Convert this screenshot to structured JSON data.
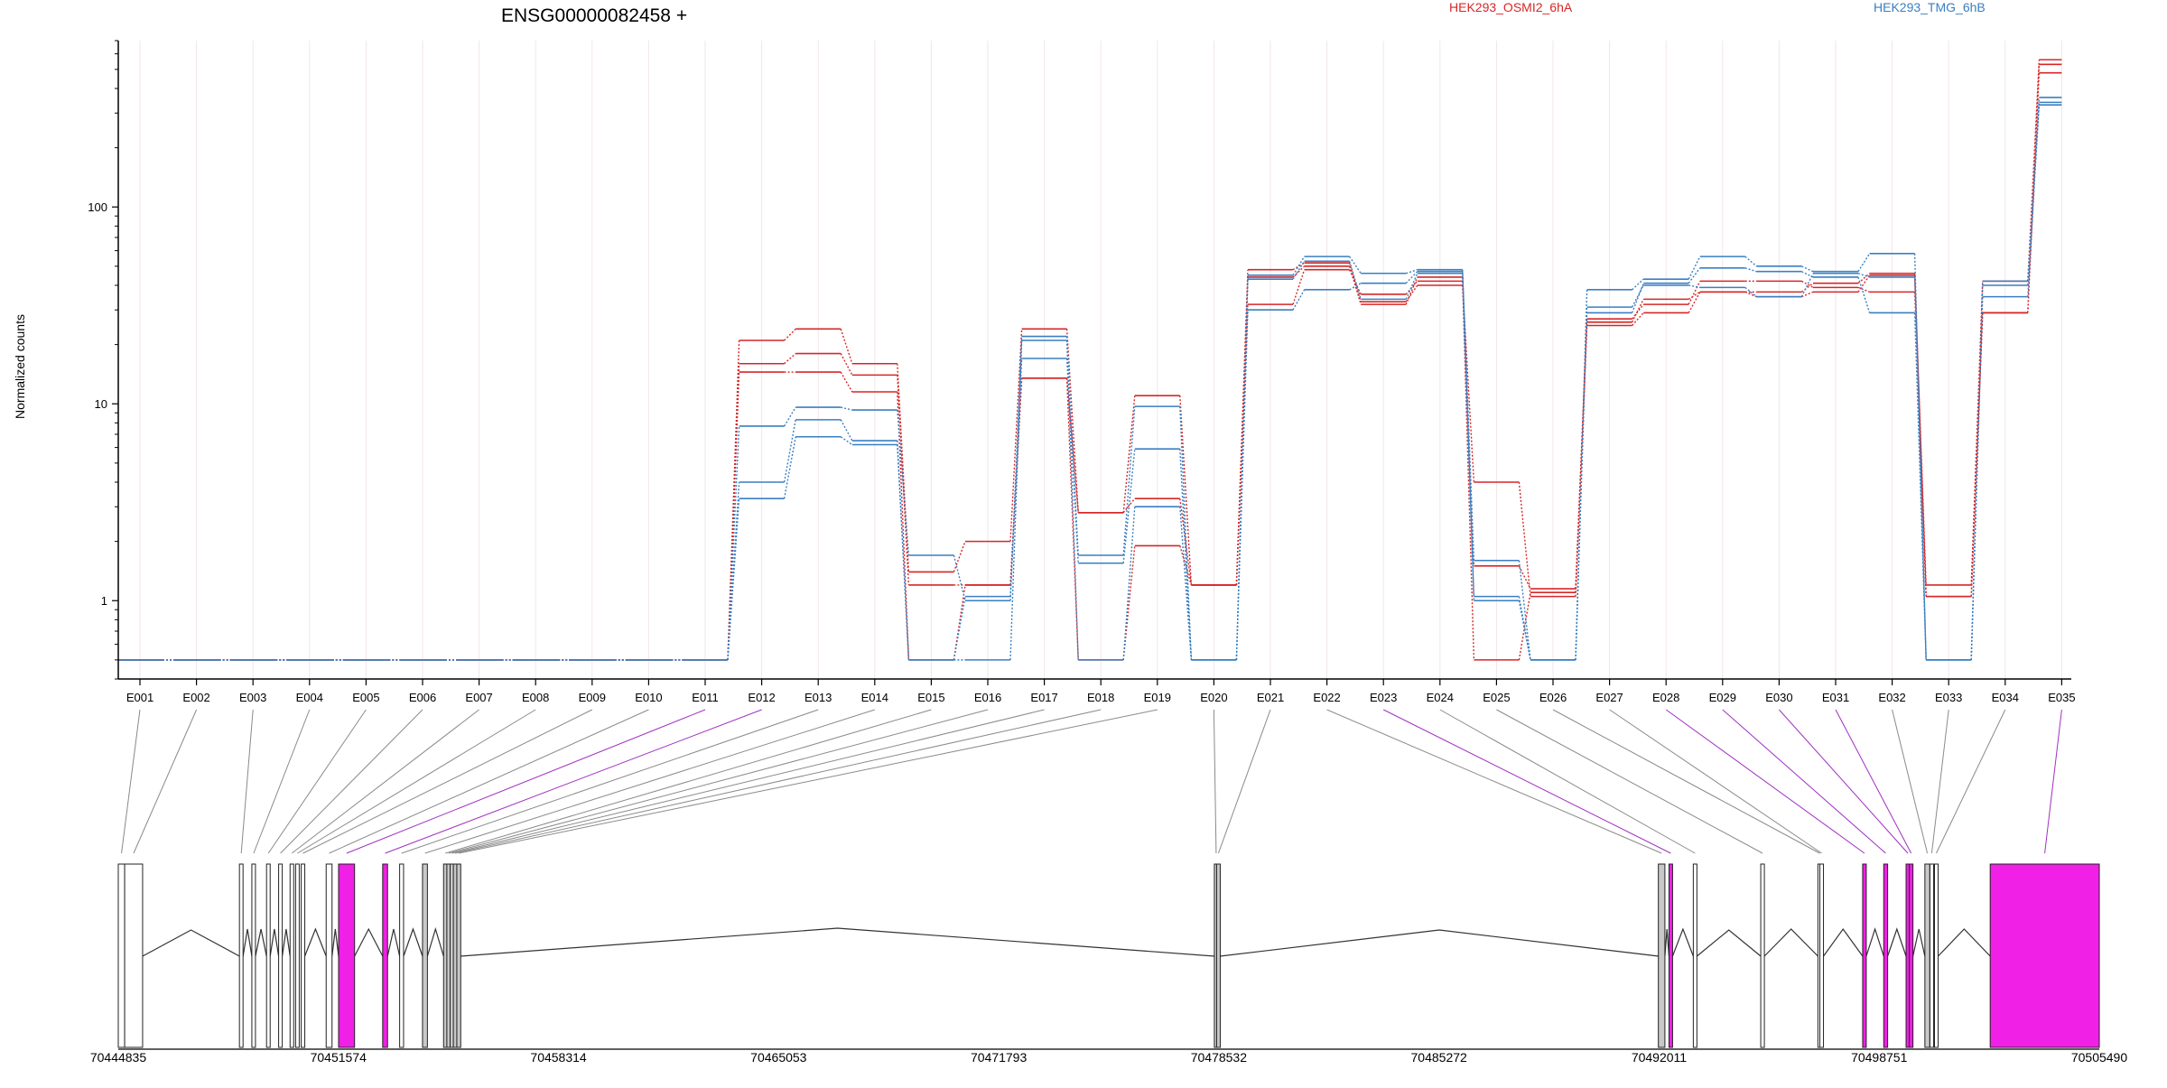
{
  "chart_data": {
    "type": "line",
    "title": "ENSG00000082458 +",
    "ylabel": "Normalized counts",
    "xlabel": "",
    "y_scale": "log",
    "ylim": [
      0.4,
      700
    ],
    "y_ticks": [
      1,
      10,
      100
    ],
    "y_tick_labels": [
      "1",
      "10",
      "100"
    ],
    "grid": true,
    "legend_position": "top",
    "legend": [
      {
        "name": "HEK293_OSMI2_6hA",
        "color": "#d62728"
      },
      {
        "name": "HEK293_TMG_6hB",
        "color": "#3a7fc1"
      }
    ],
    "categories": [
      "E001",
      "E002",
      "E003",
      "E004",
      "E005",
      "E006",
      "E007",
      "E008",
      "E009",
      "E010",
      "E011",
      "E012",
      "E013",
      "E014",
      "E015",
      "E016",
      "E017",
      "E018",
      "E019",
      "E020",
      "E021",
      "E022",
      "E023",
      "E024",
      "E025",
      "E026",
      "E027",
      "E028",
      "E029",
      "E030",
      "E031",
      "E032",
      "E033",
      "E034",
      "E035"
    ],
    "series": [
      {
        "group": "HEK293_OSMI2_6hA",
        "color": "#d62728",
        "values": [
          0.5,
          0.5,
          0.5,
          0.5,
          0.5,
          0.5,
          0.5,
          0.5,
          0.5,
          0.5,
          0.5,
          21,
          24,
          16,
          1.4,
          2,
          24,
          2.8,
          11,
          1.2,
          48,
          52,
          33,
          40,
          4,
          1.05,
          26,
          34,
          37,
          35,
          37,
          45,
          1.2,
          42,
          560
        ]
      },
      {
        "group": "HEK293_OSMI2_6hA",
        "color": "#d62728",
        "values": [
          0.5,
          0.5,
          0.5,
          0.5,
          0.5,
          0.5,
          0.5,
          0.5,
          0.5,
          0.5,
          0.5,
          16,
          18,
          14,
          1.2,
          1.2,
          13.5,
          2.8,
          3.3,
          1.2,
          44,
          50,
          32,
          44,
          1.5,
          1.15,
          27,
          32,
          42,
          42,
          39,
          37,
          1.05,
          29,
          530
        ]
      },
      {
        "group": "HEK293_OSMI2_6hA",
        "color": "#d62728",
        "values": [
          0.5,
          0.5,
          0.5,
          0.5,
          0.5,
          0.5,
          0.5,
          0.5,
          0.5,
          0.5,
          0.5,
          14.5,
          14.5,
          11.5,
          0.5,
          1.2,
          13.5,
          0.5,
          1.9,
          1.2,
          32,
          48,
          36,
          42,
          0.5,
          1.1,
          25,
          29,
          37,
          37,
          41,
          46,
          1.05,
          29,
          480
        ]
      },
      {
        "group": "HEK293_TMG_6hB",
        "color": "#3a7fc1",
        "values": [
          0.5,
          0.5,
          0.5,
          0.5,
          0.5,
          0.5,
          0.5,
          0.5,
          0.5,
          0.5,
          0.5,
          7.7,
          9.6,
          9.3,
          1.7,
          1,
          22,
          1.7,
          9.7,
          0.5,
          45,
          56,
          46,
          48,
          1.6,
          0.5,
          38,
          43,
          56,
          50,
          47,
          58,
          0.5,
          40,
          360
        ]
      },
      {
        "group": "HEK293_TMG_6hB",
        "color": "#3a7fc1",
        "values": [
          0.5,
          0.5,
          0.5,
          0.5,
          0.5,
          0.5,
          0.5,
          0.5,
          0.5,
          0.5,
          0.5,
          4,
          8.3,
          6.5,
          0.5,
          1.05,
          17,
          1.55,
          5.9,
          0.5,
          30,
          38,
          41,
          47,
          1.05,
          0.5,
          29,
          41,
          49,
          47,
          44,
          29,
          0.5,
          35,
          340
        ]
      },
      {
        "group": "HEK293_TMG_6hB",
        "color": "#3a7fc1",
        "values": [
          0.5,
          0.5,
          0.5,
          0.5,
          0.5,
          0.5,
          0.5,
          0.5,
          0.5,
          0.5,
          0.5,
          3.3,
          6.8,
          6.2,
          0.5,
          0.5,
          21,
          0.5,
          3,
          0.5,
          43,
          53,
          34,
          46,
          1,
          0.5,
          31,
          40,
          39,
          35,
          46,
          44,
          0.5,
          42,
          330
        ]
      }
    ],
    "gene_model": {
      "genomic_axis_labels": [
        "70444835",
        "70451574",
        "70458314",
        "70465053",
        "70471793",
        "70478532",
        "70485272",
        "70492011",
        "70498751",
        "70505490"
      ],
      "exon_bins": [
        {
          "id": "E001",
          "start": 70444835,
          "end": 70445030,
          "highlight": false
        },
        {
          "id": "E002",
          "start": 70445030,
          "end": 70445580,
          "highlight": false
        },
        {
          "id": "E003",
          "start": 70448550,
          "end": 70448650,
          "highlight": false
        },
        {
          "id": "E004",
          "start": 70448930,
          "end": 70449030,
          "highlight": false
        },
        {
          "id": "E005",
          "start": 70449380,
          "end": 70449480,
          "highlight": false
        },
        {
          "id": "E006",
          "start": 70449750,
          "end": 70449850,
          "highlight": false
        },
        {
          "id": "E007",
          "start": 70450100,
          "end": 70450200,
          "highlight": false
        },
        {
          "id": "E008",
          "start": 70450270,
          "end": 70450370,
          "highlight": false
        },
        {
          "id": "E009",
          "start": 70450440,
          "end": 70450540,
          "highlight": false
        },
        {
          "id": "E010",
          "start": 70451200,
          "end": 70451380,
          "highlight": false
        },
        {
          "id": "E011",
          "start": 70451580,
          "end": 70452070,
          "highlight": true
        },
        {
          "id": "E012",
          "start": 70452930,
          "end": 70453080,
          "highlight": true
        },
        {
          "id": "E013",
          "start": 70453450,
          "end": 70453570,
          "highlight": false
        },
        {
          "id": "E014",
          "start": 70454150,
          "end": 70454300,
          "highlight": false
        },
        {
          "id": "E015",
          "start": 70454800,
          "end": 70454900,
          "highlight": false
        },
        {
          "id": "E016",
          "start": 70454900,
          "end": 70455000,
          "highlight": false
        },
        {
          "id": "E017",
          "start": 70455000,
          "end": 70455100,
          "highlight": false
        },
        {
          "id": "E018",
          "start": 70455100,
          "end": 70455200,
          "highlight": false
        },
        {
          "id": "E019",
          "start": 70455200,
          "end": 70455320,
          "highlight": false
        },
        {
          "id": "E020",
          "start": 70478420,
          "end": 70478480,
          "highlight": false
        },
        {
          "id": "E021",
          "start": 70478480,
          "end": 70478560,
          "highlight": false
        },
        {
          "id": "E022",
          "start": 70491990,
          "end": 70492190,
          "highlight": false
        },
        {
          "id": "E023",
          "start": 70492320,
          "end": 70492420,
          "highlight": true
        },
        {
          "id": "E024",
          "start": 70493060,
          "end": 70493170,
          "highlight": false
        },
        {
          "id": "E025",
          "start": 70495150,
          "end": 70495210,
          "highlight": false
        },
        {
          "id": "E026",
          "start": 70496900,
          "end": 70496960,
          "highlight": false
        },
        {
          "id": "E027",
          "start": 70496960,
          "end": 70497020,
          "highlight": false
        },
        {
          "id": "E028",
          "start": 70498250,
          "end": 70498350,
          "highlight": true
        },
        {
          "id": "E029",
          "start": 70498890,
          "end": 70499010,
          "highlight": true
        },
        {
          "id": "E030",
          "start": 70499580,
          "end": 70499680,
          "highlight": true
        },
        {
          "id": "E031",
          "start": 70499680,
          "end": 70499780,
          "highlight": true
        },
        {
          "id": "E032",
          "start": 70500150,
          "end": 70500300,
          "highlight": false
        },
        {
          "id": "E033",
          "start": 70500320,
          "end": 70500400,
          "highlight": false
        },
        {
          "id": "E034",
          "start": 70500450,
          "end": 70500550,
          "highlight": false
        },
        {
          "id": "E035",
          "start": 70502150,
          "end": 70505490,
          "highlight": true
        }
      ],
      "highlight_color": "#f020e6",
      "exon_fill": "#ffffff",
      "shaded_fill": "#c8c8c8"
    }
  }
}
